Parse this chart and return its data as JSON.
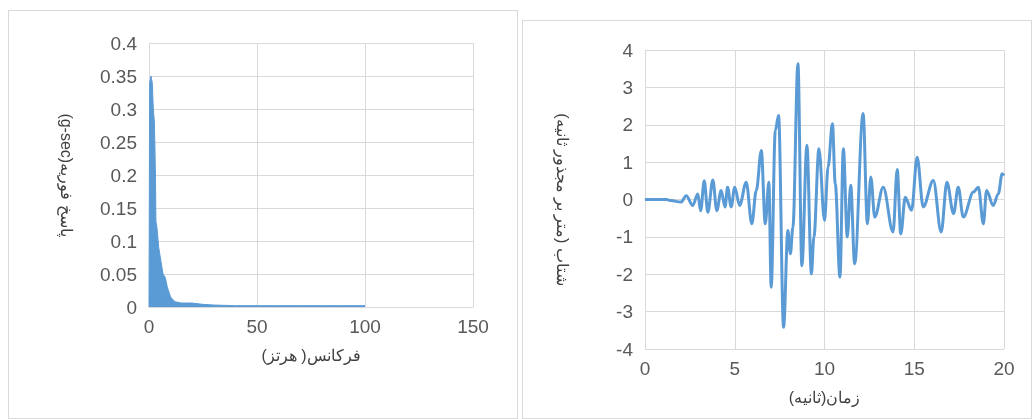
{
  "chart_data": [
    {
      "type": "area",
      "xlabel": "فرکانس( هرتز)",
      "ylabel": "(g-sec)پاسخ فوریه",
      "x": [
        0,
        0.3,
        0.9,
        1.5,
        2,
        2.5,
        3,
        3.2,
        3.7,
        4.5,
        5.5,
        6.5,
        7.5,
        8.5,
        10,
        12,
        15,
        20,
        25,
        30,
        40,
        50,
        60,
        70,
        80,
        90,
        100
      ],
      "series": [
        {
          "color": "#5b9bd5",
          "values": [
            0,
            0.34,
            0.35,
            0.34,
            0.3,
            0.28,
            0.2,
            0.13,
            0.12,
            0.09,
            0.07,
            0.05,
            0.045,
            0.03,
            0.015,
            0.008,
            0.006,
            0.006,
            0.004,
            0.003,
            0.002,
            0.002,
            0.002,
            0.002,
            0.002,
            0.002,
            0.002
          ]
        }
      ],
      "xlim": [
        0,
        150
      ],
      "xticks": [
        0,
        50,
        100,
        150
      ],
      "ylim": [
        0,
        0.4
      ],
      "yticks": [
        0,
        0.05,
        0.1,
        0.15,
        0.2,
        0.25,
        0.3,
        0.35,
        0.4
      ],
      "grid": true
    },
    {
      "type": "line",
      "xlabel": "زمان(ثانیه)",
      "ylabel": "شتاب (متر بر مجذور ثانیه)",
      "x": [
        0,
        1.2,
        1.45,
        2.0,
        2.3,
        2.66,
        2.94,
        3.1,
        3.3,
        3.5,
        3.78,
        4.0,
        4.24,
        4.46,
        4.6,
        4.8,
        5.0,
        5.27,
        5.64,
        5.95,
        6.2,
        6.48,
        6.7,
        6.9,
        7.03,
        7.26,
        7.44,
        7.72,
        7.96,
        8.1,
        8.24,
        8.52,
        8.74,
        9.02,
        9.27,
        9.41,
        9.69,
        10.0,
        10.2,
        10.44,
        10.6,
        10.86,
        11.05,
        11.27,
        11.46,
        11.68,
        12.15,
        12.39,
        12.58,
        12.8,
        13.27,
        13.82,
        14.05,
        14.25,
        14.5,
        14.85,
        15.16,
        15.5,
        16.06,
        16.5,
        16.82,
        17.19,
        17.45,
        17.73,
        18.3,
        18.57,
        18.85,
        19.03,
        19.4,
        19.68,
        19.9,
        20
      ],
      "series": [
        {
          "color": "#5b9bd5",
          "values": [
            0,
            0,
            -0.03,
            -0.07,
            0.1,
            -0.16,
            0.15,
            -0.3,
            0.5,
            -0.34,
            0.52,
            -0.3,
            0.24,
            -0.2,
            0.33,
            -0.2,
            0.33,
            -0.16,
            0.46,
            -0.65,
            0.24,
            1.31,
            -0.65,
            0.46,
            -2.35,
            1.85,
            2.25,
            -3.42,
            -0.83,
            -1.45,
            -0.74,
            3.63,
            -1.77,
            1.45,
            -1.99,
            -1.0,
            1.36,
            -0.56,
            0.87,
            2.03,
            0.42,
            -2.08,
            1.36,
            -1.0,
            0.38,
            -1.72,
            2.3,
            -0.65,
            0.6,
            -0.47,
            0.33,
            -0.87,
            0.8,
            -0.92,
            0.06,
            -0.29,
            1.13,
            -0.2,
            0.51,
            -0.87,
            0.46,
            -0.38,
            0.33,
            -0.47,
            0.2,
            0.33,
            -0.65,
            0.24,
            -0.16,
            0.15,
            0.69,
            0.64
          ]
        }
      ],
      "xlim": [
        0,
        20
      ],
      "xticks": [
        0,
        5,
        10,
        15,
        20
      ],
      "ylim": [
        -4,
        4
      ],
      "yticks": [
        -4,
        -3,
        -2,
        -1,
        0,
        1,
        2,
        3,
        4
      ],
      "grid": true
    }
  ]
}
